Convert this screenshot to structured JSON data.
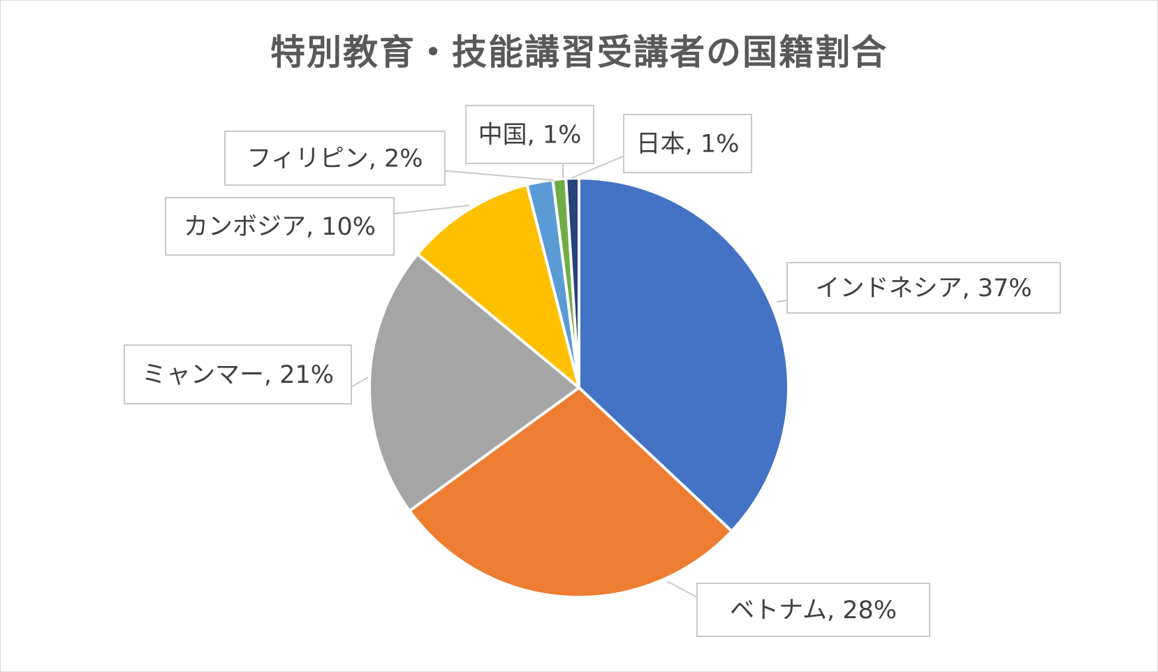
{
  "chart_data": {
    "type": "pie",
    "title": "特別教育・技能講習受講者の国籍割合",
    "slices": [
      {
        "label": "インドネシア",
        "value": 37,
        "color": "#4472C4"
      },
      {
        "label": "ベトナム",
        "value": 28,
        "color": "#ED7D31"
      },
      {
        "label": "ミャンマー",
        "value": 21,
        "color": "#A5A5A5"
      },
      {
        "label": "カンボジア",
        "value": 10,
        "color": "#FFC000"
      },
      {
        "label": "フィリピン",
        "value": 2,
        "color": "#5B9BD5"
      },
      {
        "label": "中国",
        "value": 1,
        "color": "#70AD47"
      },
      {
        "label": "日本",
        "value": 1,
        "color": "#264478"
      }
    ],
    "data_labels": [
      "インドネシア, 37%",
      "ベトナム, 28%",
      "ミャンマー, 21%",
      "カンボジア, 10%",
      "フィリピン, 2%",
      "中国, 1%",
      "日本, 1%"
    ],
    "legend": "none"
  }
}
